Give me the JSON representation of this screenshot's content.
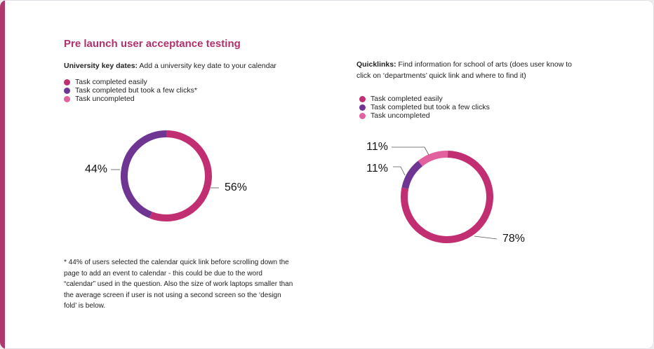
{
  "title": "Pre launch user acceptance testing",
  "colors": {
    "completed_easily": "#c12f72",
    "completed_clicks": "#6f3592",
    "uncompleted": "#e2609e",
    "accent": "#b0386e"
  },
  "left": {
    "subtitle_bold": "University key dates:",
    "subtitle_rest": " Add a university key date to your calendar",
    "legend": [
      {
        "label": "Task completed easily",
        "color_key": "completed_easily"
      },
      {
        "label": "Task completed but took a few clicks*",
        "color_key": "completed_clicks"
      },
      {
        "label": "Task uncompleted",
        "color_key": "uncompleted"
      }
    ],
    "footnote": "* 44% of users selected the calendar quick link before scrolling down the page to add an event to calendar - this could be due to the word “calendar” used in the question. Also the size of work laptops smaller than the average screen if user is not using a second screen so the ‘design fold’ is below."
  },
  "right": {
    "subtitle_bold": "Quicklinks:",
    "subtitle_rest": " Find information for school of arts (does user know to click on ‘departments’ quick link and where to find it)",
    "legend": [
      {
        "label": "Task completed easily",
        "color_key": "completed_easily"
      },
      {
        "label": "Task completed but took a few clicks",
        "color_key": "completed_clicks"
      },
      {
        "label": "Task uncompleted",
        "color_key": "uncompleted"
      }
    ]
  },
  "chart_data": [
    {
      "type": "pie",
      "subtype": "donut",
      "title": "University key dates",
      "slices": [
        {
          "label": "Task completed easily",
          "value": 56,
          "display": "56%"
        },
        {
          "label": "Task completed but took a few clicks*",
          "value": 44,
          "display": "44%"
        },
        {
          "label": "Task uncompleted",
          "value": 0,
          "display": ""
        }
      ]
    },
    {
      "type": "pie",
      "subtype": "donut",
      "title": "Quicklinks",
      "slices": [
        {
          "label": "Task completed easily",
          "value": 78,
          "display": "78%"
        },
        {
          "label": "Task completed but took a few clicks",
          "value": 11,
          "display": "11%"
        },
        {
          "label": "Task uncompleted",
          "value": 11,
          "display": "11%"
        }
      ]
    }
  ]
}
